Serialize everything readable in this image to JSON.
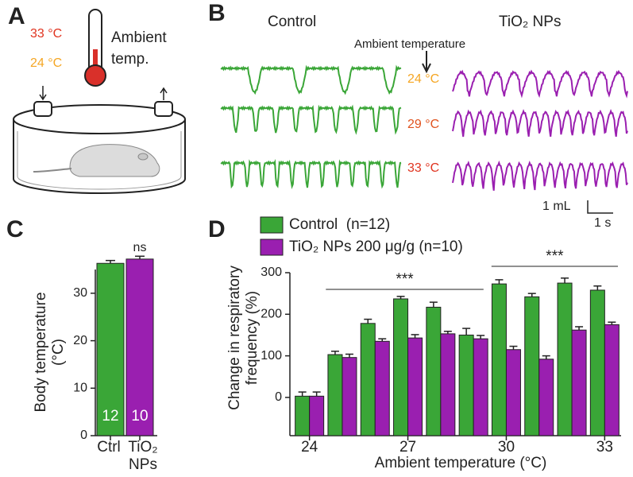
{
  "figure": {
    "panel_letters": [
      "A",
      "B",
      "C",
      "D"
    ],
    "panel_a": {
      "hot": "33 °C",
      "cool": "24 °C",
      "label_lines": [
        "Ambient",
        "temp."
      ]
    },
    "panel_b": {
      "columns": [
        "Control",
        "TiO₂ NPs"
      ],
      "marker": "Ambient temperature",
      "rows": [
        "24 °C",
        "29 °C",
        "33 °C"
      ],
      "scale_volume": "1 mL",
      "scale_time": "1 s"
    }
  },
  "chart_data": [
    {
      "type": "bar",
      "ylabel": [
        "Body temperature",
        "(°C)"
      ],
      "categories": [
        "Ctrl",
        "TiO₂ NPs"
      ],
      "values": [
        36.3,
        37.2
      ],
      "errors": [
        0.6,
        0.6
      ],
      "colors": [
        "#3aa637",
        "#9a1fb0"
      ],
      "n": [
        12,
        10
      ],
      "annotations": [
        "ns"
      ],
      "ylim": [
        0,
        35
      ],
      "yticks": [
        0,
        10,
        20,
        30
      ]
    },
    {
      "type": "grouped-bar",
      "xlabel": "Ambient temperature (°C)",
      "ylabel": [
        "Change in respiratory",
        "frequency (%)"
      ],
      "categories": [
        24,
        null,
        null,
        27,
        null,
        null,
        30,
        null,
        null,
        33
      ],
      "series": [
        {
          "name": "Control  (n=12)",
          "color": "#3aa637",
          "values": [
            3,
            103,
            178,
            237,
            217,
            150,
            273,
            242,
            275,
            258
          ],
          "errors": [
            10,
            8,
            10,
            6,
            12,
            16,
            10,
            8,
            12,
            10
          ]
        },
        {
          "name": "TiO₂ NPs 200 μg/g (n=10)",
          "color": "#9a1fb0",
          "values": [
            3,
            96,
            135,
            143,
            153,
            141,
            115,
            92,
            162,
            175
          ],
          "errors": [
            10,
            8,
            6,
            8,
            6,
            8,
            8,
            8,
            8,
            6
          ]
        }
      ],
      "annotations": [
        "***",
        "***"
      ],
      "ylim": [
        -92,
        300
      ],
      "yticks": [
        0,
        100,
        200,
        300
      ]
    }
  ]
}
